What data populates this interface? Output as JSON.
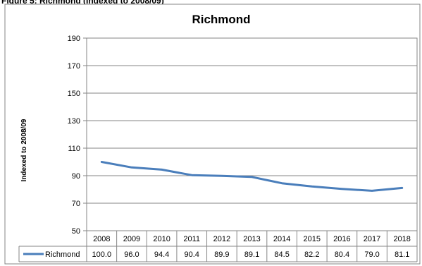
{
  "caption": "Figure 5: Richmond (Indexed to 2008/09)",
  "chart_data": {
    "type": "line",
    "title": "Richmond",
    "ylabel": "Indexed to 2008/09",
    "xlabel": "",
    "ylim": [
      50,
      190
    ],
    "yticks": [
      50,
      70,
      90,
      110,
      130,
      150,
      170,
      190
    ],
    "categories": [
      "2008",
      "2009",
      "2010",
      "2011",
      "2012",
      "2013",
      "2014",
      "2015",
      "2016",
      "2017",
      "2018"
    ],
    "series": [
      {
        "name": "Richmond",
        "values": [
          100.0,
          96.0,
          94.4,
          90.4,
          89.9,
          89.1,
          84.5,
          82.2,
          80.4,
          79.0,
          81.1
        ],
        "labels": [
          "100.0",
          "96.0",
          "94.4",
          "90.4",
          "89.9",
          "89.1",
          "84.5",
          "82.2",
          "80.4",
          "79.0",
          "81.1"
        ],
        "color": "#4a7ebb"
      }
    ],
    "grid": true,
    "legend": "data-table"
  }
}
